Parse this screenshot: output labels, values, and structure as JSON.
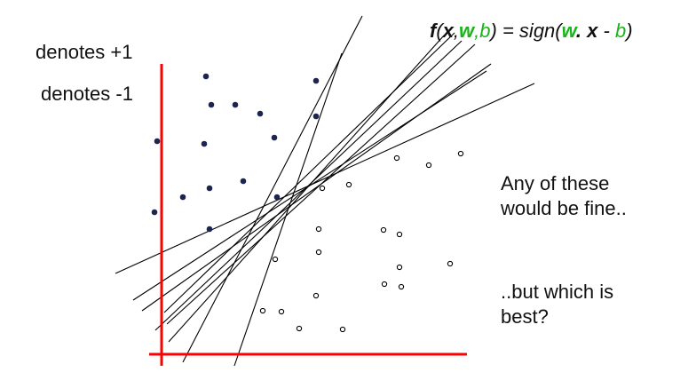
{
  "legend": {
    "positive_label": "denotes +1",
    "negative_label": "denotes -1"
  },
  "formula": {
    "f": "f",
    "open": "(",
    "x": "x",
    "comma1": ",",
    "w": "w",
    "comma2": ",",
    "b": "b",
    "close_eq": ") = sign(",
    "w2": "w",
    "dot": ". ",
    "x2": "x",
    "minus": " - ",
    "b2": "b",
    "end": ")"
  },
  "notes": {
    "line1a": "Any of these",
    "line1b": "would be fine..",
    "line2a": "..but which is",
    "line2b": "best?"
  },
  "colors": {
    "axis": "#ff0000",
    "positive_point": "#1b2550",
    "negative_point": "#000000",
    "green": "#18b418",
    "line": "#000000"
  }
}
